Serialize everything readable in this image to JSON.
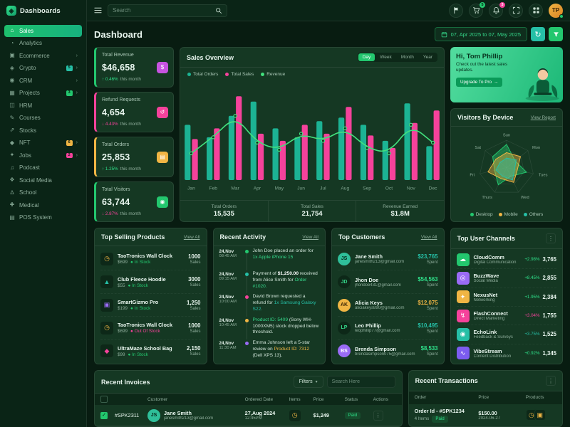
{
  "page": {
    "title": "Dashboard",
    "date_range": "07, Apr 2025 to 07, May 2025"
  },
  "header": {
    "search_placeholder": "Search",
    "cart_badge": "5",
    "bell_badge": "3",
    "user_initials": "TP"
  },
  "sidebar": {
    "brand": "Dashboards",
    "items": [
      {
        "label": "Sales",
        "icon": "home-icon",
        "active": true
      },
      {
        "label": "Analytics",
        "icon": "analytics-icon"
      },
      {
        "label": "Ecommerce",
        "icon": "ecommerce-icon",
        "chevron": true
      },
      {
        "label": "Crypto",
        "icon": "crypto-icon",
        "chevron": true,
        "badge": "5",
        "badge_color": "#26bfa6"
      },
      {
        "label": "CRM",
        "icon": "crm-icon",
        "chevron": true
      },
      {
        "label": "Projects",
        "icon": "projects-icon",
        "chevron": true,
        "badge": "3",
        "badge_color": "#23c76e"
      },
      {
        "label": "HRM",
        "icon": "hrm-icon"
      },
      {
        "label": "Courses",
        "icon": "courses-icon"
      },
      {
        "label": "Stocks",
        "icon": "stocks-icon"
      },
      {
        "label": "NFT",
        "icon": "nft-icon",
        "chevron": true,
        "badge": "6",
        "badge_color": "#f0b544"
      },
      {
        "label": "Jobs",
        "icon": "jobs-icon",
        "chevron": true,
        "badge": "2",
        "badge_color": "#f5429b"
      },
      {
        "label": "Podcast",
        "icon": "podcast-icon"
      },
      {
        "label": "Social Media",
        "icon": "social-icon"
      },
      {
        "label": "School",
        "icon": "school-icon"
      },
      {
        "label": "Medical",
        "icon": "medical-icon"
      },
      {
        "label": "POS System",
        "icon": "pos-icon"
      }
    ]
  },
  "stats": [
    {
      "label": "Total Revenue",
      "value": "$46,658",
      "delta": "0.46%",
      "direction": "up",
      "delta_color": "#2fe08a",
      "note": "this month",
      "accent": "#23c76e",
      "icon": "revenue-icon",
      "icon_bg": "#c653e0"
    },
    {
      "label": "Refund Requests",
      "value": "4,654",
      "delta": "4.43%",
      "direction": "down",
      "delta_color": "#f5429b",
      "note": "this month",
      "accent": "#f5429b",
      "icon": "refund-icon",
      "icon_bg": "#f5429b"
    },
    {
      "label": "Total Orders",
      "value": "25,853",
      "delta": "1.25%",
      "direction": "up",
      "delta_color": "#2fe08a",
      "note": "this month",
      "accent": "#f0b544",
      "icon": "orders-icon",
      "icon_bg": "#f0b544"
    },
    {
      "label": "Total Visitors",
      "value": "63,744",
      "delta": "2.87%",
      "direction": "down",
      "delta_color": "#f5429b",
      "note": "this month",
      "accent": "#23c76e",
      "icon": "visitors-icon",
      "icon_bg": "#23c76e"
    }
  ],
  "sales_overview": {
    "title": "Sales Overview",
    "tabs": [
      "Day",
      "Week",
      "Month",
      "Year"
    ],
    "active_tab": "Day",
    "footer": [
      {
        "label": "Total Orders",
        "value": "15,535"
      },
      {
        "label": "Total Sales",
        "value": "21,754"
      },
      {
        "label": "Revenue Earned",
        "value": "$1.8M"
      }
    ]
  },
  "greeting": {
    "title": "Hi, Tom Phillip",
    "subtitle": "Check out the latest sales updates.",
    "cta": "Upgrade To Pro"
  },
  "visitors": {
    "title": "Visitors By Device",
    "link": "View Report"
  },
  "top_products": {
    "title": "Top Selling Products",
    "link": "View All",
    "sales_label": "Sales",
    "items": [
      {
        "name": "TaoTronics Wall Clock",
        "price": "$699",
        "stock": "In Stock",
        "in_stock": true,
        "sales": "1000",
        "glyph": "◷",
        "thumb_color": "#f0b544"
      },
      {
        "name": "Club Fleece Hoodie",
        "price": "$55",
        "stock": "In Stock",
        "in_stock": true,
        "sales": "3000",
        "glyph": "▲",
        "thumb_color": "#26bfa6"
      },
      {
        "name": "SmartGizmo Pro",
        "price": "$199",
        "stock": "In Stock",
        "in_stock": true,
        "sales": "1,250",
        "glyph": "▣",
        "thumb_color": "#9a6bf5"
      },
      {
        "name": "TaoTronics Wall Clock",
        "price": "$699",
        "stock": "Out Of Stock",
        "in_stock": false,
        "sales": "1000",
        "glyph": "◷",
        "thumb_color": "#f0b544"
      },
      {
        "name": "UltraMaze School Bag",
        "price": "$99",
        "stock": "In Stock",
        "in_stock": true,
        "sales": "2,150",
        "glyph": "◆",
        "thumb_color": "#f5429b"
      }
    ]
  },
  "recent_activity": {
    "title": "Recent Activity",
    "link": "View All",
    "items": [
      {
        "date": "24,Nov",
        "time": "08:45 AM",
        "dot": "#23c76e",
        "segments": [
          {
            "t": "John Doe placed an order for "
          },
          {
            "t": "1x Apple iPhone 15",
            "c": "#35d98b"
          }
        ]
      },
      {
        "date": "24,Nov",
        "time": "09:15 AM",
        "dot": "#26bfa6",
        "segments": [
          {
            "t": "Payment of "
          },
          {
            "t": "$1,250.00",
            "b": true
          },
          {
            "t": " received from Alice Smith for "
          },
          {
            "t": "Order #1020.",
            "c": "#35d98b"
          }
        ]
      },
      {
        "date": "24,Nov",
        "time": "10:00 AM",
        "dot": "#f5429b",
        "segments": [
          {
            "t": "David Brown requested a refund for "
          },
          {
            "t": "1x Samsung Galaxy S22.",
            "c": "#26bfa6"
          }
        ]
      },
      {
        "date": "24,Nov",
        "time": "10:45 AM",
        "dot": "#f0b544",
        "segments": [
          {
            "t": "Product ID: 5409",
            "c": "#35d98b"
          },
          {
            "t": " (Sony WH-1000XM5) stock dropped below threshold."
          }
        ]
      },
      {
        "date": "24,Nov",
        "time": "11:30 AM",
        "dot": "#9a6bf5",
        "segments": [
          {
            "t": "Emma Johnson left a 5-star review on "
          },
          {
            "t": "Product ID: 7312",
            "c": "#f0b544"
          },
          {
            "t": " (Dell XPS 13)."
          }
        ]
      }
    ]
  },
  "top_customers": {
    "title": "Top Customers",
    "link": "View All",
    "spent_label": "Spent",
    "items": [
      {
        "name": "Jane Smith",
        "email": "janesmith213@gmail.com",
        "amount": "$23,765",
        "amount_color": "#26bfa6",
        "initials": "JS",
        "avatar_bg": "#2fbf9a",
        "avatar_fg": "#06281a"
      },
      {
        "name": "Jhon Doe",
        "email": "jhondoe431@gmail.com",
        "amount": "$54,563",
        "amount_color": "#2fe08a",
        "initials": "JD",
        "avatar_bg": "#0d2818",
        "avatar_fg": "#35d98b"
      },
      {
        "name": "Alicia Keys",
        "email": "aliciakeys890@gmail.com",
        "amount": "$12,075",
        "amount_color": "#f0b544",
        "initials": "AK",
        "avatar_bg": "#f0b544",
        "avatar_fg": "#3a2405"
      },
      {
        "name": "Leo Phillip",
        "email": "leophillip77@gmail.com",
        "amount": "$10,495",
        "amount_color": "#26bfa6",
        "initials": "LP",
        "avatar_bg": "#0d2818",
        "avatar_fg": "#35d98b"
      },
      {
        "name": "Brenda Simpson",
        "email": "brendasimpson075@gmail.com",
        "amount": "$8,533",
        "amount_color": "#2fe08a",
        "initials": "BS",
        "avatar_bg": "#9a6bf5",
        "avatar_fg": "#ffffff"
      }
    ]
  },
  "top_channels": {
    "title": "Top User Channels",
    "items": [
      {
        "name": "CloudComm",
        "desc": "Digital Communication",
        "delta": "+2.98%",
        "delta_color": "#2fe08a",
        "value": "3,765",
        "glyph": "☁",
        "icon_bg": "#23c76e"
      },
      {
        "name": "BuzzWave",
        "desc": "Social Media",
        "delta": "+8.45%",
        "delta_color": "#2fe08a",
        "value": "2,855",
        "glyph": "◎",
        "icon_bg": "#9a6bf5"
      },
      {
        "name": "NexusNet",
        "desc": "Networking",
        "delta": "+1.95%",
        "delta_color": "#2fe08a",
        "value": "2,384",
        "glyph": "✦",
        "icon_bg": "#f0b544"
      },
      {
        "name": "FlashConnect",
        "desc": "Direct Marketing",
        "delta": "+3.04%",
        "delta_color": "#f5429b",
        "value": "1,755",
        "glyph": "↯",
        "icon_bg": "#f5429b"
      },
      {
        "name": "EchoLink",
        "desc": "Feedback & Surveys",
        "delta": "+3.75%",
        "delta_color": "#26bfa6",
        "value": "1,525",
        "glyph": "◉",
        "icon_bg": "#26bfa6"
      },
      {
        "name": "VibeStream",
        "desc": "Content Distribution",
        "delta": "+0.92%",
        "delta_color": "#2fe08a",
        "value": "1,345",
        "glyph": "∿",
        "icon_bg": "#7c5cf0"
      }
    ]
  },
  "invoices": {
    "title": "Recent Invoices",
    "filters_label": "Filters",
    "search_placeholder": "Search Here",
    "columns": [
      "Customer",
      "Ordered Date",
      "Items",
      "Price",
      "Status",
      "Actions"
    ],
    "rows": [
      {
        "id": "#SPK2311",
        "name": "Jane Smith",
        "email": "janesmith213@gmail.com",
        "date": "27,Aug 2024",
        "time": "12:45PM",
        "price": "$1,249",
        "status": "Paid",
        "item_glyph": "◷",
        "item_color": "#f0b544"
      }
    ]
  },
  "transactions": {
    "title": "Recent Transactions",
    "columns": [
      "Order",
      "Price",
      "Products"
    ],
    "rows": [
      {
        "order_id": "Order Id - #SPK1234",
        "items": "4 Items",
        "status": "Paid",
        "price": "$150.00",
        "date": "2024-06-27",
        "product_glyphs": [
          "◷",
          "▣"
        ]
      }
    ]
  },
  "chart_data": [
    {
      "type": "bar",
      "title": "Sales Overview",
      "categories": [
        "Jan",
        "Feb",
        "Mar",
        "Apr",
        "May",
        "Jun",
        "Jul",
        "Aug",
        "Sep",
        "Oct",
        "Nov",
        "Dec"
      ],
      "ylim": [
        0,
        100
      ],
      "grid": false,
      "legend_position": "top-left",
      "series": [
        {
          "name": "Total Orders",
          "kind": "bar",
          "color": "#1cb394",
          "values": [
            62,
            48,
            72,
            88,
            58,
            48,
            66,
            70,
            62,
            44,
            86,
            38
          ]
        },
        {
          "name": "Total Sales",
          "kind": "bar",
          "color": "#f5429b",
          "values": [
            46,
            58,
            94,
            52,
            44,
            62,
            52,
            82,
            50,
            36,
            64,
            78
          ]
        },
        {
          "name": "Revenue",
          "kind": "line",
          "color": "#42e07d",
          "values": [
            30,
            48,
            72,
            42,
            34,
            52,
            44,
            58,
            36,
            30,
            62,
            42
          ]
        }
      ]
    },
    {
      "type": "radar",
      "title": "Visitors By Device",
      "categories": [
        "Sun",
        "Mon",
        "Tues",
        "Wed",
        "Thurs",
        "Fri",
        "Sat"
      ],
      "max": 100,
      "legend_position": "bottom",
      "series": [
        {
          "name": "Desktop",
          "color": "#23c76e",
          "values": [
            85,
            40,
            75,
            35,
            70,
            45,
            65
          ]
        },
        {
          "name": "Mobile",
          "color": "#f0b544",
          "values": [
            55,
            65,
            40,
            60,
            45,
            70,
            50
          ]
        },
        {
          "name": "Others",
          "color": "#26bfa6",
          "values": [
            35,
            45,
            30,
            50,
            35,
            40,
            30
          ]
        }
      ]
    }
  ]
}
